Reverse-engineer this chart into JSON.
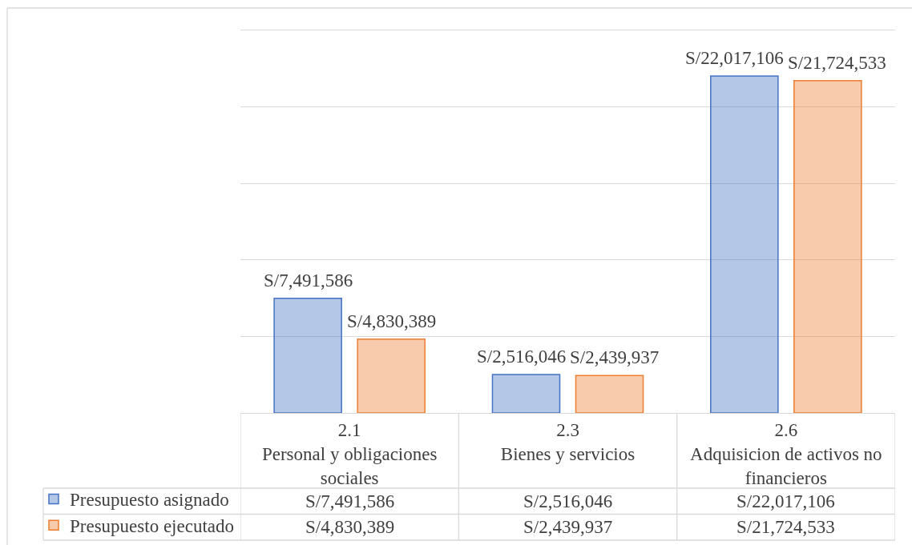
{
  "chart_data": {
    "type": "bar",
    "categories": [
      "2.1\nPersonal y obligaciones sociales",
      "2.3\nBienes y servicios",
      "2.6\nAdquisicion de activos no financieros"
    ],
    "series": [
      {
        "name": "Presupuesto asignado",
        "color": "#4472c4",
        "values": [
          7491586,
          2516046,
          22017106
        ],
        "value_labels": [
          "S/7,491,586",
          "S/2,516,046",
          "S/22,017,106"
        ]
      },
      {
        "name": "Presupuesto ejecutado",
        "color": "#ed7d31",
        "values": [
          4830389,
          2439937,
          21724533
        ],
        "value_labels": [
          "S/4,830,389",
          "S/2,439,937",
          "S/21,724,533"
        ]
      }
    ],
    "ylim": [
      0,
      25000000
    ],
    "yticks": [
      {
        "value": 0,
        "label": null
      },
      {
        "value": 5000000,
        "label": null
      },
      {
        "value": 10000000,
        "label": null
      },
      {
        "value": 15000000,
        "label": null
      },
      {
        "value": 20000000,
        "label": null
      },
      {
        "value": 25000000,
        "label": null
      }
    ],
    "grid": "y",
    "legend": "bottom left",
    "tick_labels": "x"
  }
}
